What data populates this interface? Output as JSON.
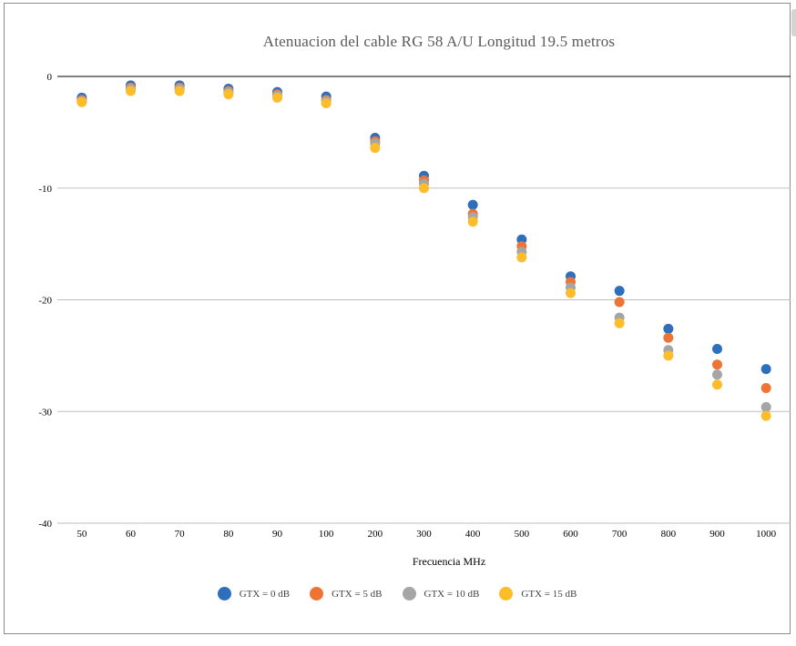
{
  "chart_data": {
    "type": "scatter",
    "title": "Atenuacion del cable RG 58 A/U Longitud 19.5 metros",
    "xlabel": "Frecuencia MHz",
    "ylabel": "",
    "categories": [
      "50",
      "60",
      "70",
      "80",
      "90",
      "100",
      "200",
      "300",
      "400",
      "500",
      "600",
      "700",
      "800",
      "900",
      "1000"
    ],
    "yticks": [
      "0",
      "-10",
      "-20",
      "-30",
      "-40"
    ],
    "ytick_values": [
      0,
      -10,
      -20,
      -30,
      -40
    ],
    "ylim": [
      -40,
      0
    ],
    "grid": "horizontal",
    "legend_position": "bottom",
    "series": [
      {
        "name": "GTX = 0 dB",
        "color": "#2e6fbd",
        "values": [
          -1.9,
          -0.8,
          -0.8,
          -1.1,
          -1.4,
          -1.8,
          -5.5,
          -8.9,
          -11.5,
          -14.6,
          -17.9,
          -19.2,
          -22.6,
          -24.4,
          -26.2
        ]
      },
      {
        "name": "GTX = 5 dB",
        "color": "#ee7435",
        "values": [
          -2.1,
          -1.0,
          -1.0,
          -1.3,
          -1.6,
          -2.1,
          -5.8,
          -9.3,
          -12.3,
          -15.2,
          -18.4,
          -20.2,
          -23.4,
          -25.8,
          -27.9
        ]
      },
      {
        "name": "GTX = 10 dB",
        "color": "#a5a5a5",
        "values": [
          -2.2,
          -1.1,
          -1.1,
          -1.4,
          -1.7,
          -2.2,
          -6.0,
          -9.6,
          -12.6,
          -15.7,
          -18.9,
          -21.6,
          -24.5,
          -26.7,
          -29.6
        ]
      },
      {
        "name": "GTX = 15 dB",
        "color": "#fdbd2b",
        "values": [
          -2.3,
          -1.3,
          -1.3,
          -1.6,
          -1.9,
          -2.4,
          -6.4,
          -10.0,
          -13.0,
          -16.2,
          -19.4,
          -22.1,
          -25.0,
          -27.6,
          -30.4
        ]
      }
    ]
  }
}
